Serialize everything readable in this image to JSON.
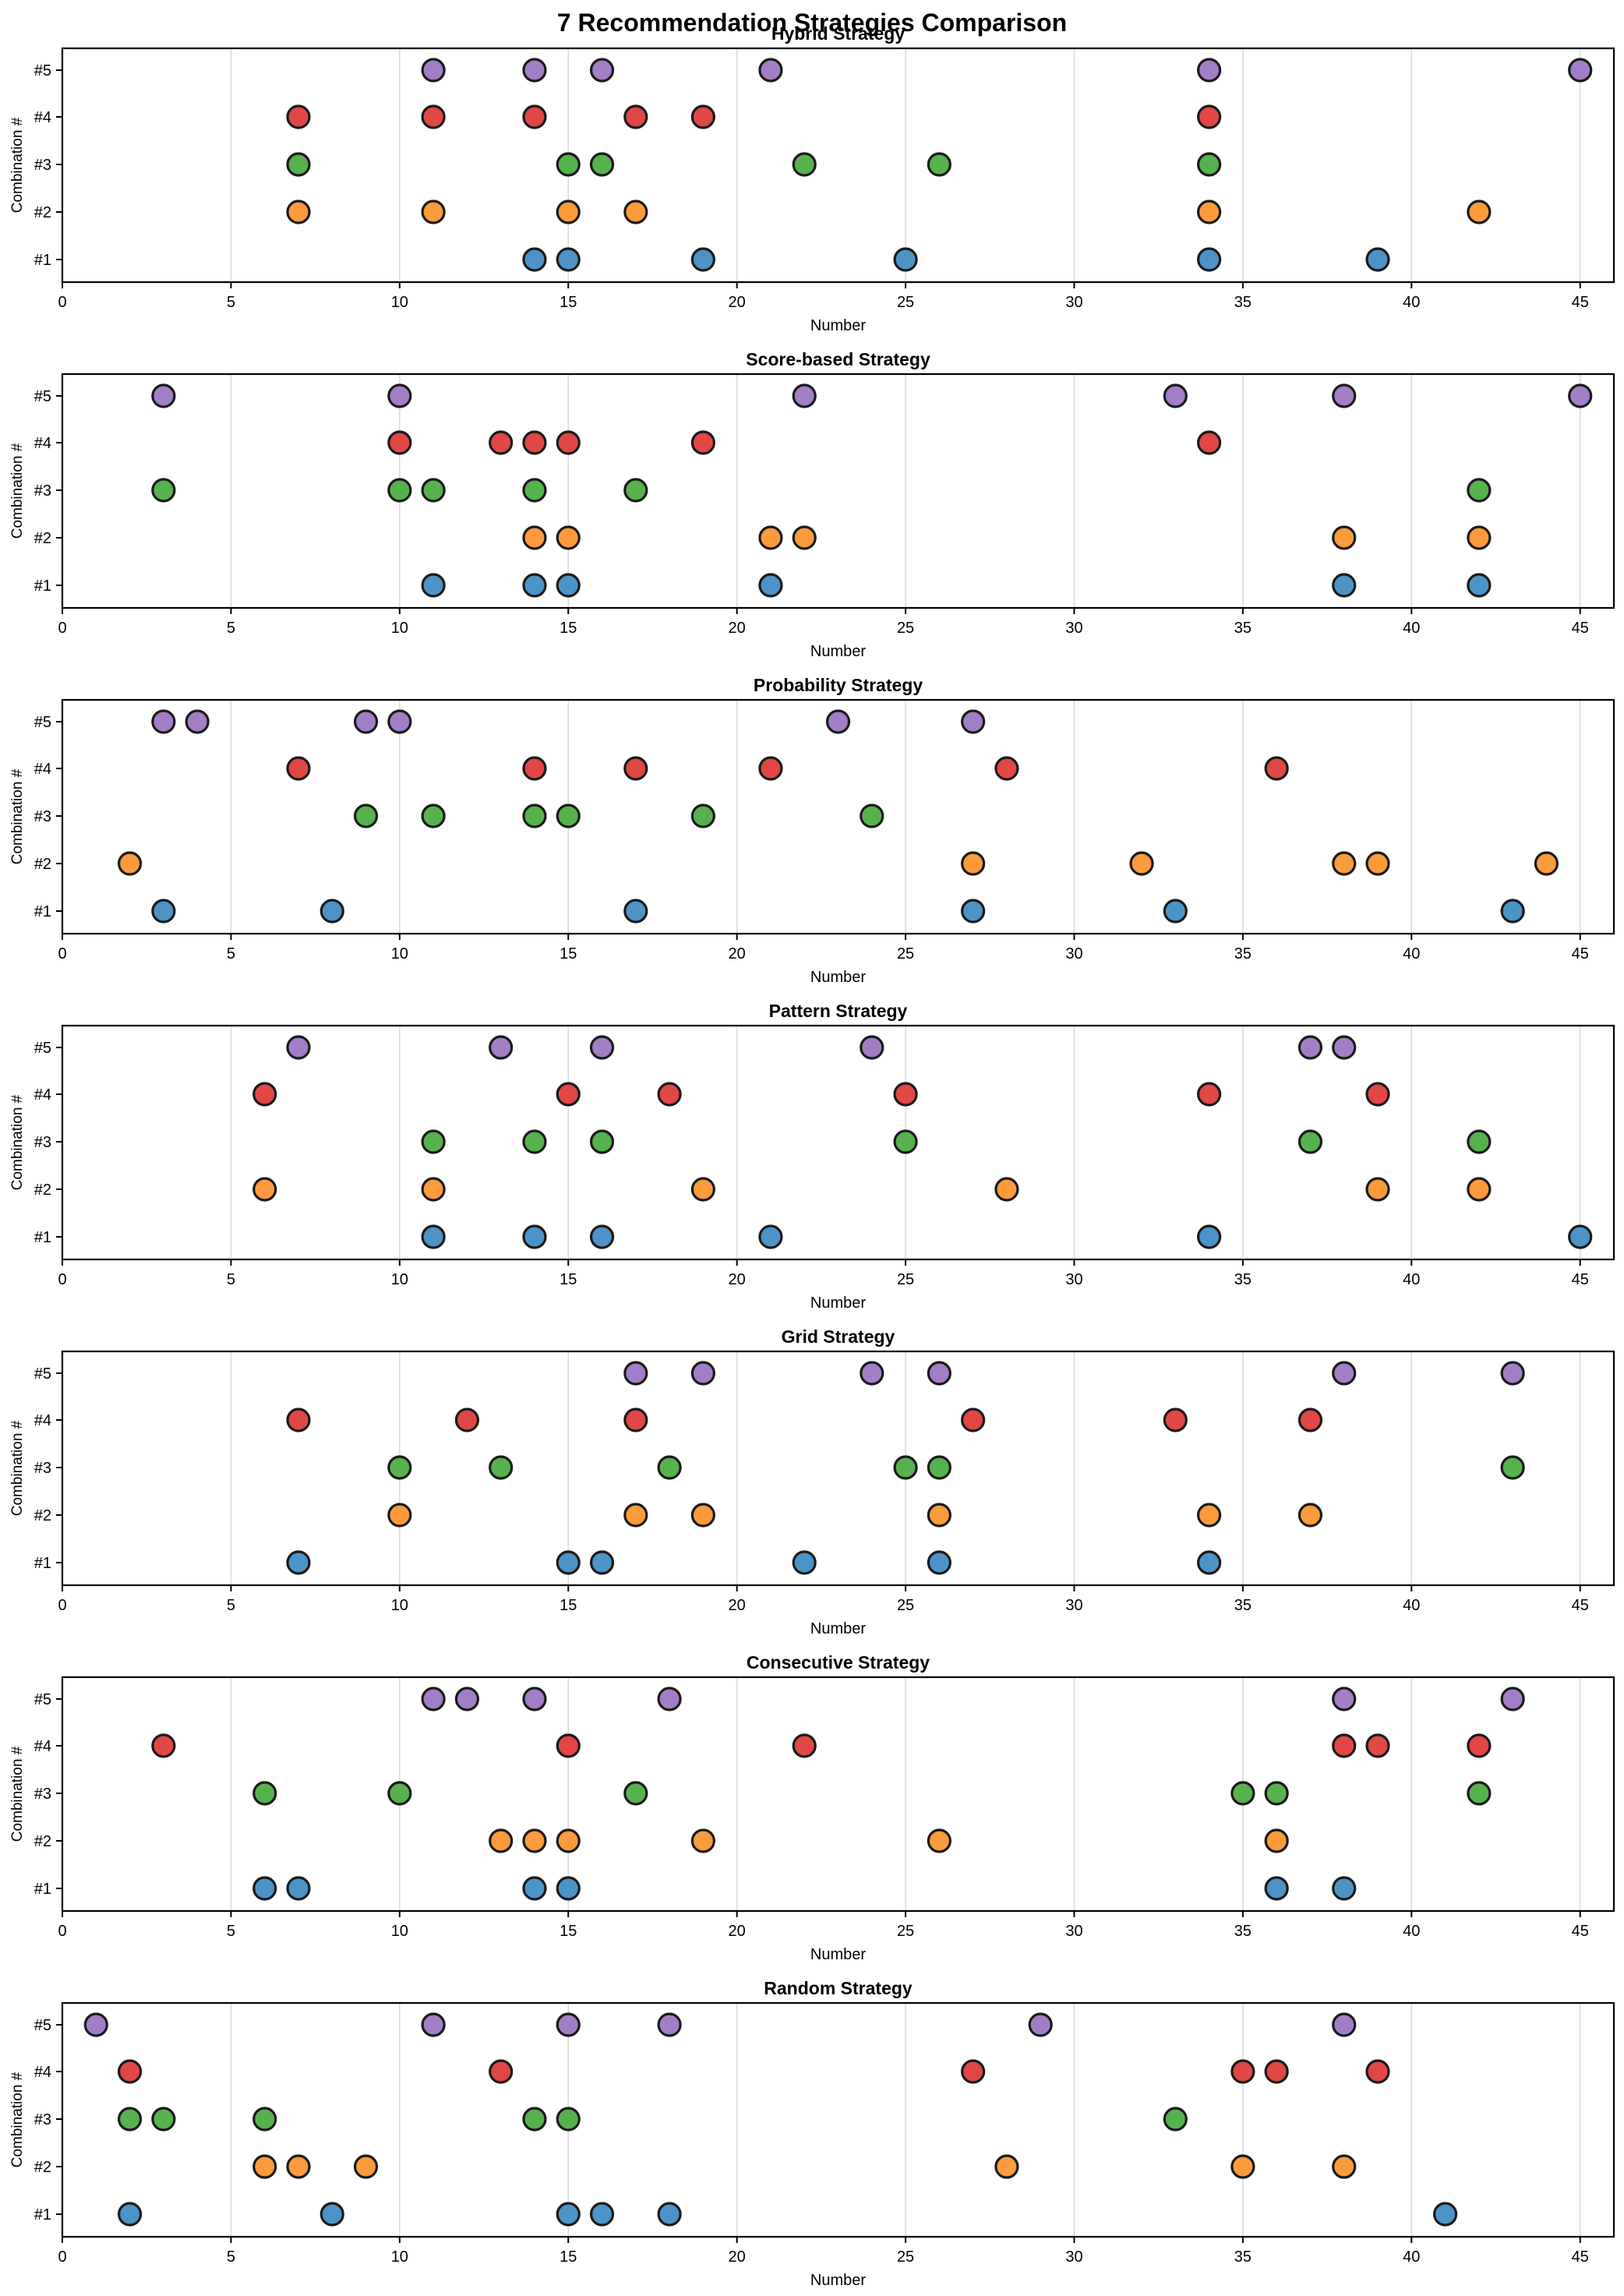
{
  "chart_data": {
    "type": "scatter",
    "title": "7 Recommendation Strategies Comparison",
    "xlabel": "Number",
    "ylabel": "Combination #",
    "xlim": [
      0,
      46
    ],
    "xticks": [
      0,
      5,
      10,
      15,
      20,
      25,
      30,
      35,
      40,
      45
    ],
    "grid": "vertical",
    "combination_labels": [
      "#1",
      "#2",
      "#3",
      "#4",
      "#5"
    ],
    "colors": [
      "#4c93c7",
      "#fb9b3c",
      "#56b24d",
      "#e04745",
      "#a27ec6"
    ],
    "panels": [
      {
        "title": "Hybrid Strategy",
        "combinations": [
          [
            14,
            15,
            19,
            25,
            34,
            39
          ],
          [
            7,
            11,
            15,
            17,
            34,
            42
          ],
          [
            7,
            15,
            16,
            22,
            26,
            34
          ],
          [
            7,
            11,
            14,
            17,
            19,
            34
          ],
          [
            11,
            14,
            16,
            21,
            34,
            45
          ]
        ]
      },
      {
        "title": "Score-based Strategy",
        "combinations": [
          [
            11,
            14,
            15,
            21,
            38,
            42
          ],
          [
            14,
            15,
            21,
            22,
            38,
            42
          ],
          [
            3,
            10,
            11,
            14,
            17,
            42
          ],
          [
            10,
            13,
            14,
            15,
            19,
            34
          ],
          [
            3,
            10,
            22,
            33,
            38,
            45
          ]
        ]
      },
      {
        "title": "Probability Strategy",
        "combinations": [
          [
            3,
            8,
            17,
            27,
            33,
            43
          ],
          [
            2,
            27,
            32,
            38,
            39,
            44
          ],
          [
            9,
            11,
            14,
            15,
            19,
            24
          ],
          [
            7,
            14,
            17,
            21,
            28,
            36
          ],
          [
            3,
            4,
            9,
            10,
            23,
            27
          ]
        ]
      },
      {
        "title": "Pattern Strategy",
        "combinations": [
          [
            11,
            14,
            16,
            21,
            34,
            45
          ],
          [
            6,
            11,
            19,
            28,
            39,
            42
          ],
          [
            11,
            14,
            16,
            25,
            37,
            42
          ],
          [
            6,
            15,
            18,
            25,
            34,
            39
          ],
          [
            7,
            13,
            16,
            24,
            37,
            38
          ]
        ]
      },
      {
        "title": "Grid Strategy",
        "combinations": [
          [
            7,
            15,
            16,
            22,
            26,
            34
          ],
          [
            10,
            17,
            19,
            26,
            34,
            37
          ],
          [
            10,
            13,
            18,
            25,
            26,
            43
          ],
          [
            7,
            12,
            17,
            27,
            33,
            37
          ],
          [
            17,
            19,
            24,
            26,
            38,
            43
          ]
        ]
      },
      {
        "title": "Consecutive Strategy",
        "combinations": [
          [
            6,
            7,
            14,
            15,
            36,
            38
          ],
          [
            13,
            14,
            15,
            19,
            26,
            36
          ],
          [
            6,
            10,
            17,
            35,
            36,
            42
          ],
          [
            3,
            15,
            22,
            38,
            39,
            42
          ],
          [
            11,
            12,
            14,
            18,
            38,
            43
          ]
        ]
      },
      {
        "title": "Random Strategy",
        "combinations": [
          [
            2,
            8,
            15,
            16,
            18,
            41
          ],
          [
            6,
            7,
            9,
            28,
            35,
            38
          ],
          [
            2,
            3,
            6,
            14,
            15,
            33
          ],
          [
            2,
            13,
            27,
            35,
            36,
            39
          ],
          [
            1,
            11,
            15,
            18,
            29,
            38
          ]
        ]
      }
    ]
  }
}
